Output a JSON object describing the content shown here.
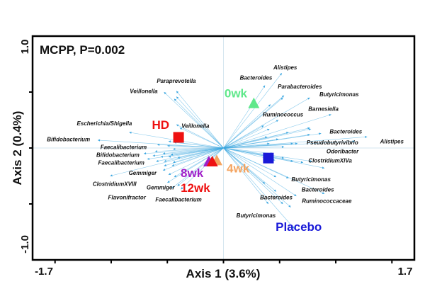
{
  "chart_data": {
    "type": "scatter",
    "subtype": "biplot",
    "annotation": "MCPP, P=0.002",
    "xlabel": "Axis 1 (3.6%)",
    "ylabel": "Axis 2 (0.4%)",
    "xlim": [
      -1.7,
      1.7
    ],
    "ylim": [
      -1.0,
      1.0
    ],
    "x_tick_labels": [
      "-1.7",
      "1.7"
    ],
    "y_tick_labels": [
      "1.0",
      "-1.0"
    ],
    "grid": false,
    "arrow_color": "#3aa6e0",
    "groups": [
      {
        "name": "HD",
        "marker": "square",
        "x": -0.4,
        "y": 0.095,
        "color": "#ee1111",
        "label_x": -0.56,
        "label_y": 0.21
      },
      {
        "name": "Placebo",
        "marker": "square",
        "x": 0.4,
        "y": -0.09,
        "color": "#1a1ad8",
        "label_x": 0.67,
        "label_y": -0.22
      },
      {
        "name": "0wk",
        "marker": "triangle",
        "x": 0.27,
        "y": 0.4,
        "color": "#5fe88a",
        "label_x": 0.11,
        "label_y": 0.49
      },
      {
        "name": "8wk",
        "marker": "triangle",
        "x": -0.13,
        "y": -0.12,
        "color": "#a020c8",
        "label_x": -0.28,
        "label_y": -0.22
      },
      {
        "name": "4wk",
        "marker": "triangle",
        "x": -0.06,
        "y": -0.11,
        "color": "#f4a460",
        "label_x": 0.13,
        "label_y": -0.18
      },
      {
        "name": "12wk",
        "marker": "triangle",
        "x": -0.1,
        "y": -0.12,
        "color": "#ee1111",
        "label_x": -0.25,
        "label_y": -0.31
      }
    ],
    "arrows": [
      [
        -0.53,
        0.5
      ],
      [
        -0.42,
        0.51
      ],
      [
        -0.42,
        0.46
      ],
      [
        -0.44,
        0.44
      ],
      [
        -0.84,
        0.14
      ],
      [
        -1.12,
        0.07
      ],
      [
        -0.49,
        0.06
      ],
      [
        -0.44,
        0.05
      ],
      [
        -0.42,
        0.21
      ],
      [
        -0.39,
        0.18
      ],
      [
        -0.59,
        0.03
      ],
      [
        -0.5,
        0.02
      ],
      [
        -0.45,
        -0.01
      ],
      [
        -0.61,
        -0.03
      ],
      [
        -0.54,
        -0.05
      ],
      [
        -0.47,
        -0.06
      ],
      [
        -0.71,
        -0.05
      ],
      [
        -0.63,
        -0.07
      ],
      [
        -0.56,
        -0.08
      ],
      [
        -0.49,
        -0.08
      ],
      [
        -0.41,
        -0.09
      ],
      [
        -0.68,
        -0.1
      ],
      [
        -0.6,
        -0.12
      ],
      [
        -0.53,
        -0.12
      ],
      [
        -0.45,
        -0.13
      ],
      [
        -1.01,
        -0.25
      ],
      [
        -0.53,
        -0.16
      ],
      [
        -0.46,
        -0.16
      ],
      [
        -0.54,
        -0.2
      ],
      [
        -0.49,
        -0.24
      ],
      [
        -0.44,
        -0.26
      ],
      [
        -0.5,
        -0.31
      ],
      [
        -0.41,
        -0.34
      ],
      [
        -0.46,
        -0.36
      ],
      [
        -0.38,
        -0.37
      ],
      [
        0.52,
        0.67
      ],
      [
        0.37,
        0.56
      ],
      [
        0.54,
        0.47
      ],
      [
        0.53,
        0.45
      ],
      [
        0.77,
        0.45
      ],
      [
        0.42,
        0.39
      ],
      [
        0.96,
        0.3
      ],
      [
        0.49,
        0.25
      ],
      [
        0.77,
        0.18
      ],
      [
        0.78,
        0.17
      ],
      [
        0.36,
        0.2
      ],
      [
        0.41,
        0.17
      ],
      [
        0.58,
        0.14
      ],
      [
        0.87,
        0.13
      ],
      [
        0.77,
        0.12
      ],
      [
        1.28,
        0.1
      ],
      [
        1.17,
        0.06
      ],
      [
        0.39,
        0.1
      ],
      [
        0.49,
        0.08
      ],
      [
        0.62,
        0.04
      ],
      [
        0.66,
        0.04
      ],
      [
        0.41,
        0.04
      ],
      [
        0.54,
        0.01
      ],
      [
        0.44,
        -0.05
      ],
      [
        0.54,
        -0.09
      ],
      [
        0.62,
        -0.12
      ],
      [
        0.71,
        -0.13
      ],
      [
        0.79,
        -0.12
      ],
      [
        0.9,
        -0.18
      ],
      [
        0.46,
        -0.11
      ],
      [
        0.47,
        -0.26
      ],
      [
        0.58,
        -0.27
      ],
      [
        0.9,
        -0.41
      ],
      [
        0.37,
        -0.32
      ],
      [
        0.47,
        -0.39
      ],
      [
        0.65,
        -0.43
      ],
      [
        0.4,
        -0.5
      ],
      [
        0.53,
        -0.5
      ],
      [
        0.6,
        -0.53
      ],
      [
        0.63,
        -0.72
      ]
    ],
    "taxa_labels": [
      {
        "text": "Paraprevotella",
        "x": -0.42,
        "y": 0.6
      },
      {
        "text": "Veillonella",
        "x": -0.71,
        "y": 0.51
      },
      {
        "text": "Escherichia/Shigella",
        "x": -1.06,
        "y": 0.22
      },
      {
        "text": "Veillonella",
        "x": -0.25,
        "y": 0.2
      },
      {
        "text": "Bifidobacterium",
        "x": -1.38,
        "y": 0.08
      },
      {
        "text": "Faecalibacterium",
        "x": -0.89,
        "y": 0.01
      },
      {
        "text": "Bifidobacterium",
        "x": -0.94,
        "y": -0.06
      },
      {
        "text": "Faecalibacterium",
        "x": -0.91,
        "y": -0.13
      },
      {
        "text": "Gemmiger",
        "x": -0.72,
        "y": -0.22
      },
      {
        "text": "ClostridiumXVIII",
        "x": -0.97,
        "y": -0.32
      },
      {
        "text": "Gemmiger",
        "x": -0.56,
        "y": -0.35
      },
      {
        "text": "Flavonifractor",
        "x": -0.86,
        "y": -0.44
      },
      {
        "text": "Faecalibacterium",
        "x": -0.4,
        "y": -0.46
      },
      {
        "text": "Alistipes",
        "x": 0.55,
        "y": 0.72
      },
      {
        "text": "Bacteroides",
        "x": 0.29,
        "y": 0.63
      },
      {
        "text": "Parabacteroides",
        "x": 0.68,
        "y": 0.55
      },
      {
        "text": "Butyricimonas",
        "x": 1.03,
        "y": 0.49
      },
      {
        "text": "Barnesiella",
        "x": 0.89,
        "y": 0.35
      },
      {
        "text": "Ruminococcus",
        "x": 0.53,
        "y": 0.3
      },
      {
        "text": "Bacteroides",
        "x": 1.09,
        "y": 0.15
      },
      {
        "text": "Pseudobutyrivibrio",
        "x": 0.97,
        "y": 0.05
      },
      {
        "text": "Alistipes",
        "x": 1.5,
        "y": 0.06
      },
      {
        "text": "Odoribacter",
        "x": 1.06,
        "y": -0.03
      },
      {
        "text": "ClostridiumXIVa",
        "x": 0.95,
        "y": -0.11
      },
      {
        "text": "Butyricimonas",
        "x": 0.78,
        "y": -0.28
      },
      {
        "text": "Bacteroides",
        "x": 0.84,
        "y": -0.37
      },
      {
        "text": "Bacteroides",
        "x": 0.47,
        "y": -0.44
      },
      {
        "text": "Ruminococcaceae",
        "x": 0.92,
        "y": -0.47
      },
      {
        "text": "Butyricimonas",
        "x": 0.29,
        "y": -0.6
      }
    ]
  }
}
